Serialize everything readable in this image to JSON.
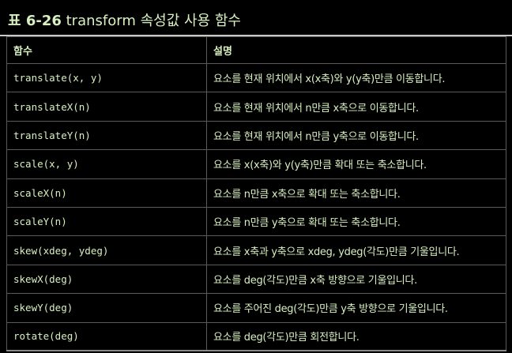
{
  "caption": {
    "number": "표 6-26",
    "title": "transform 속성값 사용 함수"
  },
  "table": {
    "headers": [
      "함수",
      "설명"
    ],
    "rows": [
      {
        "fn": "translate(x, y)",
        "desc": "요소를 현재 위치에서 x(x축)와 y(y축)만큼 이동합니다."
      },
      {
        "fn": "translateX(n)",
        "desc": "요소를 현재 위치에서 n만큼 x축으로 이동합니다."
      },
      {
        "fn": "translateY(n)",
        "desc": "요소를 현재 위치에서 n만큼 y축으로 이동합니다."
      },
      {
        "fn": "scale(x, y)",
        "desc": "요소를 x(x축)와 y(y축)만큼 확대 또는 축소합니다."
      },
      {
        "fn": "scaleX(n)",
        "desc": "요소를 n만큼 x축으로 확대 또는 축소합니다."
      },
      {
        "fn": "scaleY(n)",
        "desc": "요소를 n만큼 y축으로 확대 또는 축소합니다."
      },
      {
        "fn": "skew(xdeg, ydeg)",
        "desc": "요소를 x축과 y축으로 xdeg, ydeg(각도)만큼 기울입니다."
      },
      {
        "fn": "skewX(deg)",
        "desc": "요소를 deg(각도)만큼 x축 방향으로 기울입니다."
      },
      {
        "fn": "skewY(deg)",
        "desc": "요소를 주어진 deg(각도)만큼 y축 방향으로 기울입니다."
      },
      {
        "fn": "rotate(deg)",
        "desc": "요소를 deg(각도)만큼 회전합니다."
      }
    ]
  }
}
